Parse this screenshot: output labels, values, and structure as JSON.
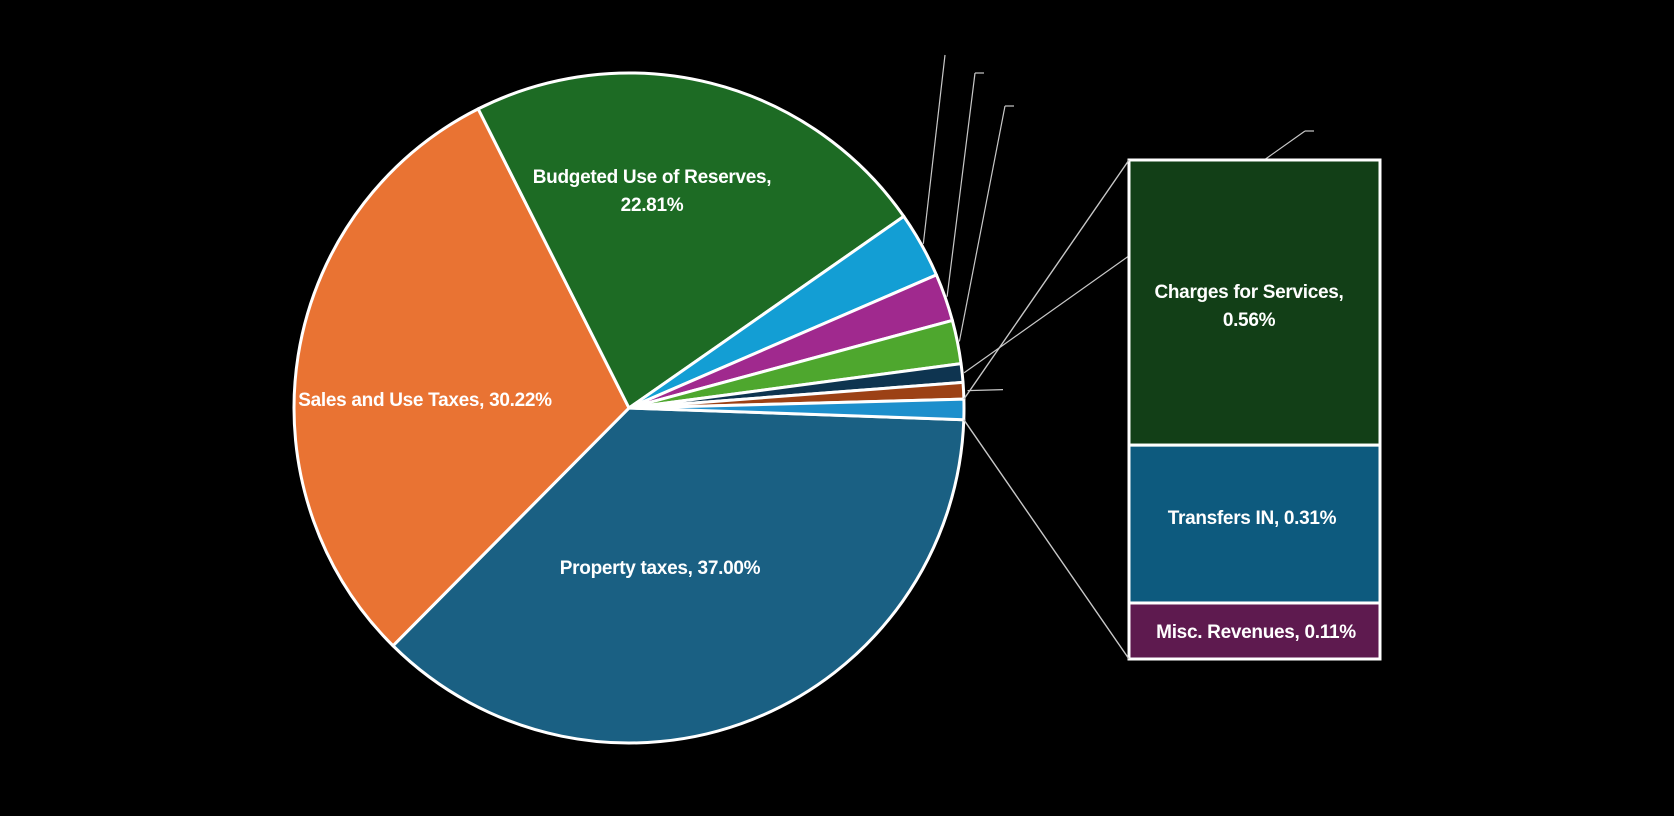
{
  "chart_data": {
    "type": "pie",
    "subtype": "pie-of-pie (bar of pie)",
    "title": "",
    "main_slices": [
      {
        "name": "Property taxes",
        "value": 37.0,
        "label": "Property taxes, 37.00%",
        "color": "#1a6083"
      },
      {
        "name": "Sales and Use Taxes",
        "value": 30.22,
        "label": "Sales and Use Taxes, 30.22%",
        "color": "#e97333"
      },
      {
        "name": "Budgeted Use of Reserves",
        "value": 22.81,
        "label": "Budgeted Use of Reserves,",
        "label2": "22.81%",
        "color": "#1d6b24"
      },
      {
        "name": "Unlabeled slice (light blue)",
        "value": 3.2,
        "color": "#139ed4"
      },
      {
        "name": "Unlabeled slice (purple)",
        "value": 2.3,
        "color": "#a0298e"
      },
      {
        "name": "Unlabeled slice (green)",
        "value": 2.1,
        "color": "#4ea72e"
      },
      {
        "name": "Unlabeled slice (dark navy)",
        "value": 0.9,
        "color": "#0e3450"
      },
      {
        "name": "Unlabeled slice (brown)",
        "value": 0.8,
        "color": "#9c4115"
      },
      {
        "name": "Other (breakout)",
        "value": 0.98,
        "color": "#1d8fcc"
      }
    ],
    "secondary_bar": [
      {
        "name": "Charges for Services",
        "value": 0.56,
        "label": "Charges for Services,",
        "label2": "0.56%",
        "color": "#123f17"
      },
      {
        "name": "Transfers IN",
        "value": 0.31,
        "label": "Transfers IN, 0.31%",
        "color": "#0d5a7e"
      },
      {
        "name": "Misc. Revenues",
        "value": 0.11,
        "label": "Misc. Revenues, 0.11%",
        "color": "#5e1a4f"
      }
    ],
    "legend": "none"
  }
}
